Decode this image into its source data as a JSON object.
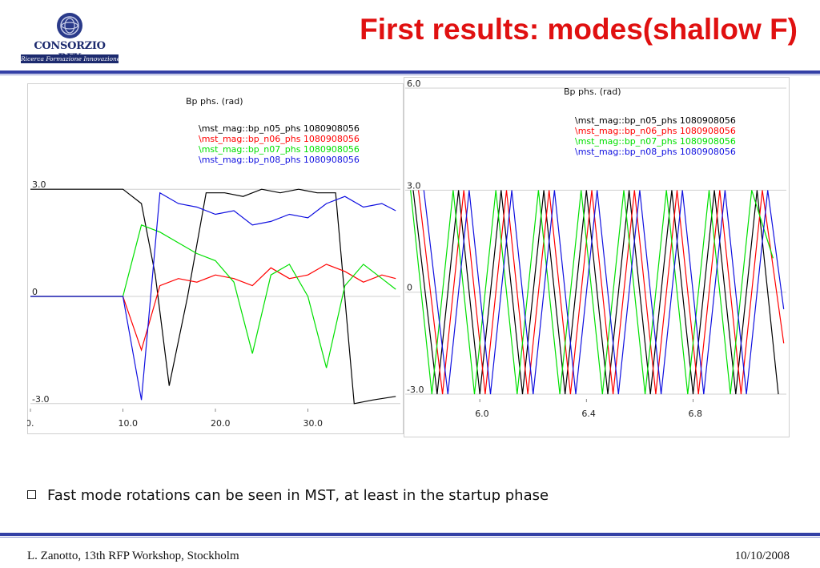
{
  "logo": {
    "name": "CONSORZIO RFX",
    "subtitle": "Ricerca Formazione Innovazione"
  },
  "title": "First results: modes(shallow F)",
  "bullet": "Fast mode rotations can be seen in MST, at least in the startup phase",
  "footer": {
    "left": "L. Zanotto, 13th RFP Workshop, Stockholm",
    "right": "10/10/2008"
  },
  "colors": {
    "n05": "#000000",
    "n06": "#ff0000",
    "n07": "#00e000",
    "n08": "#1010e0",
    "title": "#e01010",
    "rule": "#3340a6"
  },
  "chart_data": [
    {
      "type": "line",
      "title": "Bp phs. (rad)",
      "xlim": [
        0,
        40
      ],
      "ylim": [
        -3.14,
        3.14
      ],
      "x_ticks": [
        {
          "v": 0,
          "label": "0."
        },
        {
          "v": 10,
          "label": "10.0"
        },
        {
          "v": 20,
          "label": "20.0"
        },
        {
          "v": 30,
          "label": "30.0"
        }
      ],
      "y_ticks": [
        {
          "v": 3.0,
          "label": "3.0"
        },
        {
          "v": 0,
          "label": "0"
        },
        {
          "v": -3.0,
          "label": "-3.0"
        }
      ],
      "legend_position": "top-center",
      "series": [
        {
          "name": "\\mst_mag::bp_n05_phs 1080908056",
          "color": "#000000",
          "x": [
            0,
            10,
            12,
            13.5,
            15,
            17,
            19,
            21,
            23,
            25,
            27,
            29,
            31,
            33,
            35,
            37,
            39.5
          ],
          "y": [
            3.0,
            3.0,
            2.6,
            0.6,
            -2.5,
            0,
            2.9,
            2.9,
            2.8,
            3.0,
            2.9,
            3.0,
            2.9,
            2.9,
            -3.0,
            -2.9,
            -2.8
          ]
        },
        {
          "name": "\\mst_mag::bp_n06_phs 1080908056",
          "color": "#ff0000",
          "x": [
            0,
            10,
            12,
            14,
            16,
            18,
            20,
            22,
            24,
            26,
            28,
            30,
            32,
            34,
            36,
            38,
            39.5
          ],
          "y": [
            0,
            0,
            -1.5,
            0.3,
            0.5,
            0.4,
            0.6,
            0.5,
            0.3,
            0.8,
            0.5,
            0.6,
            0.9,
            0.7,
            0.4,
            0.6,
            0.5
          ]
        },
        {
          "name": "\\mst_mag::bp_n07_phs 1080908056",
          "color": "#00e000",
          "x": [
            0,
            10,
            12,
            14,
            16,
            18,
            20,
            22,
            24,
            26,
            28,
            30,
            32,
            34,
            36,
            38,
            39.5
          ],
          "y": [
            0,
            0,
            2.0,
            1.8,
            1.5,
            1.2,
            1.0,
            0.4,
            -1.6,
            0.6,
            0.9,
            0.0,
            -2.0,
            0.3,
            0.9,
            0.5,
            0.2
          ]
        },
        {
          "name": "\\mst_mag::bp_n08_phs 1080908056",
          "color": "#1010e0",
          "x": [
            0,
            10,
            12,
            14,
            16,
            18,
            20,
            22,
            24,
            26,
            28,
            30,
            32,
            34,
            36,
            38,
            39.5
          ],
          "y": [
            0,
            0,
            -2.9,
            2.9,
            2.6,
            2.5,
            2.3,
            2.4,
            2.0,
            2.1,
            2.3,
            2.2,
            2.6,
            2.8,
            2.5,
            2.6,
            2.4
          ]
        }
      ]
    },
    {
      "type": "line",
      "title": "Bp phs. (rad)",
      "xlim": [
        5.72,
        7.15
      ],
      "ylim": [
        -3.14,
        6.0
      ],
      "x_ticks": [
        {
          "v": 6.0,
          "label": "6.0"
        },
        {
          "v": 6.4,
          "label": "6.4"
        },
        {
          "v": 6.8,
          "label": "6.8"
        }
      ],
      "y_ticks": [
        {
          "v": 6.0,
          "label": "6.0"
        },
        {
          "v": 3.0,
          "label": "3.0"
        },
        {
          "v": 0,
          "label": "0"
        },
        {
          "v": -3.0,
          "label": "-3.0"
        }
      ],
      "legend_position": "top-right",
      "series": [
        {
          "name": "\\mst_mag::bp_n05_phs 1080908056",
          "color": "#000000",
          "x": [
            5.75,
            5.84,
            5.92,
            6.0,
            6.08,
            6.16,
            6.24,
            6.32,
            6.4,
            6.48,
            6.56,
            6.64,
            6.72,
            6.8,
            6.88,
            6.96,
            7.04,
            7.12
          ],
          "y": [
            3.0,
            -3.0,
            3.0,
            -3.0,
            3.0,
            -3.0,
            3.0,
            -3.0,
            3.0,
            -3.0,
            3.0,
            -3.0,
            3.0,
            -3.0,
            3.0,
            -3.0,
            3.0,
            -3.0
          ]
        },
        {
          "name": "\\mst_mag::bp_n06_phs 1080908056",
          "color": "#ff0000",
          "x": [
            5.77,
            5.86,
            5.94,
            6.02,
            6.1,
            6.18,
            6.26,
            6.34,
            6.42,
            6.5,
            6.58,
            6.66,
            6.74,
            6.82,
            6.9,
            6.98,
            7.06,
            7.14
          ],
          "y": [
            3.0,
            -3.0,
            3.0,
            -3.0,
            3.0,
            -3.0,
            3.0,
            -3.0,
            3.0,
            -3.0,
            3.0,
            -3.0,
            3.0,
            -3.0,
            3.0,
            -3.0,
            3.0,
            -1.5
          ]
        },
        {
          "name": "\\mst_mag::bp_n07_phs 1080908056",
          "color": "#00e000",
          "x": [
            5.74,
            5.82,
            5.9,
            5.98,
            6.06,
            6.14,
            6.22,
            6.3,
            6.38,
            6.46,
            6.54,
            6.62,
            6.7,
            6.78,
            6.86,
            6.94,
            7.02,
            7.1
          ],
          "y": [
            3.0,
            -3.0,
            3.0,
            -3.0,
            3.0,
            -3.0,
            3.0,
            -3.0,
            3.0,
            -3.0,
            3.0,
            -3.0,
            3.0,
            -3.0,
            3.0,
            -3.0,
            3.0,
            1.0
          ]
        },
        {
          "name": "\\mst_mag::bp_n08_phs 1080908056",
          "color": "#1010e0",
          "x": [
            5.79,
            5.88,
            5.96,
            6.04,
            6.12,
            6.2,
            6.28,
            6.36,
            6.44,
            6.52,
            6.6,
            6.68,
            6.76,
            6.84,
            6.92,
            7.0,
            7.08,
            7.14
          ],
          "y": [
            3.0,
            -3.0,
            3.0,
            -3.0,
            3.0,
            -3.0,
            3.0,
            -3.0,
            3.0,
            -3.0,
            3.0,
            -3.0,
            3.0,
            -3.0,
            3.0,
            -3.0,
            3.0,
            -0.5
          ]
        }
      ]
    }
  ]
}
